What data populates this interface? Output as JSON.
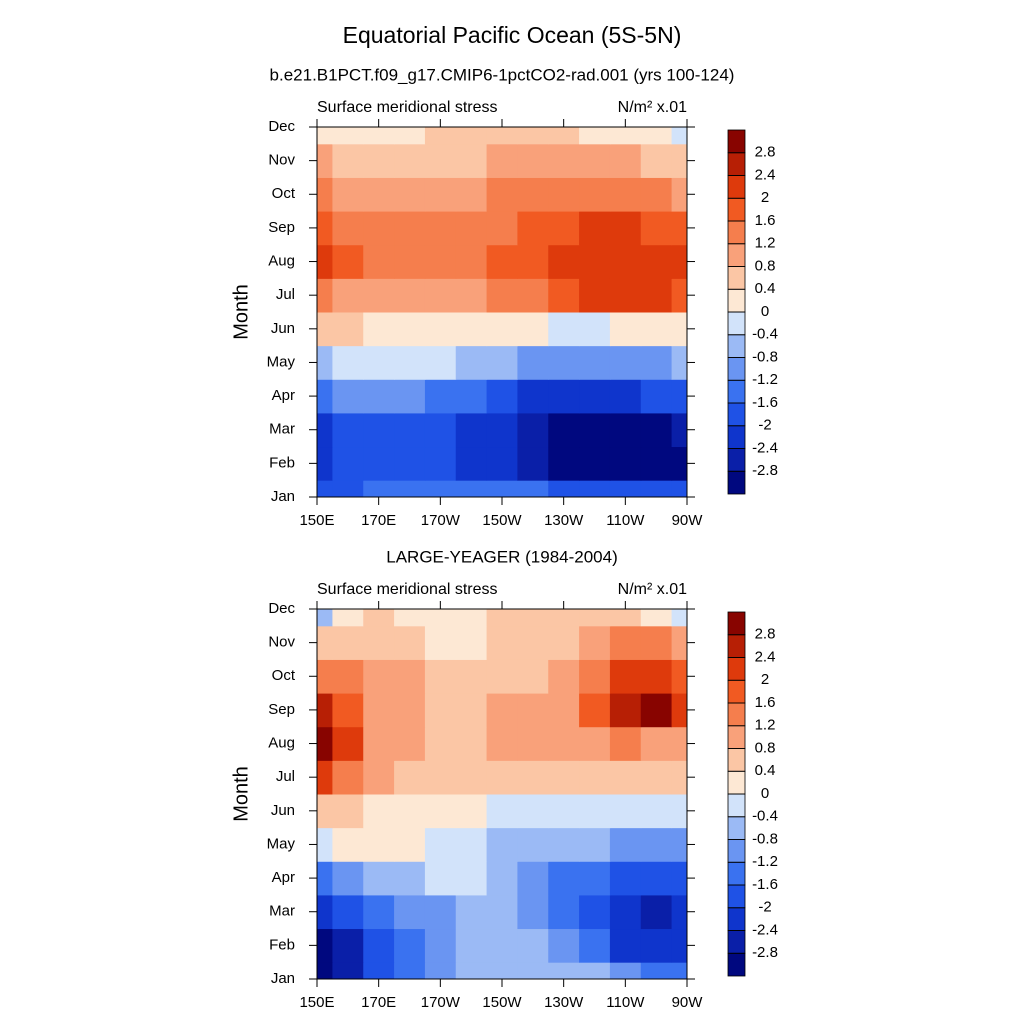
{
  "title": "Equatorial Pacific Ocean (5S-5N)",
  "chart_data": [
    {
      "type": "contour",
      "title": "b.e21.B1PCT.f09_g17.CMIP6-1pctCO2-rad.001 (yrs 100-124)",
      "left_label": "Surface meridional stress",
      "right_label": "N/m² x.01",
      "ylabel": "Month",
      "categories": [
        "Jan",
        "Feb",
        "Mar",
        "Apr",
        "May",
        "Jun",
        "Jul",
        "Aug",
        "Sep",
        "Oct",
        "Nov",
        "Dec"
      ],
      "x": [
        150,
        160,
        170,
        180,
        190,
        200,
        210,
        220,
        230,
        240,
        250,
        260,
        270
      ],
      "xlim": [
        150,
        270
      ],
      "xticks": [
        {
          "value": 150,
          "label": "150E"
        },
        {
          "value": 170,
          "label": "170E"
        },
        {
          "value": 190,
          "label": "170W"
        },
        {
          "value": 210,
          "label": "150W"
        },
        {
          "value": 230,
          "label": "130W"
        },
        {
          "value": 250,
          "label": "110W"
        },
        {
          "value": 270,
          "label": "90W"
        }
      ],
      "levels": [
        -2.8,
        -2.4,
        -2,
        -1.6,
        -1.2,
        -0.8,
        -0.4,
        0,
        0.4,
        0.8,
        1.2,
        1.6,
        2,
        2.4,
        2.8
      ],
      "colors": [
        "#00087f",
        "#0a1fa8",
        "#0f35cc",
        "#1f52e6",
        "#3a72f0",
        "#6a95f2",
        "#9bbaf5",
        "#d2e3fa",
        "#fde8d4",
        "#fbc6a5",
        "#f9a17a",
        "#f57e4d",
        "#f15a22",
        "#de3a0c",
        "#b71f05",
        "#880400"
      ],
      "z": [
        [
          -1.8,
          -1.7,
          -1.6,
          -1.5,
          -1.4,
          -1.3,
          -1.3,
          -1.5,
          -1.7,
          -1.8,
          -1.9,
          -2,
          -2
        ],
        [
          -2.2,
          -2,
          -1.9,
          -1.9,
          -2,
          -2.1,
          -2.3,
          -2.6,
          -2.9,
          -3,
          -3,
          -3,
          -2.9
        ],
        [
          -2.1,
          -1.9,
          -1.8,
          -1.8,
          -1.9,
          -2.1,
          -2.4,
          -2.7,
          -2.9,
          -3,
          -3,
          -2.9,
          -2.6
        ],
        [
          -1.3,
          -1.2,
          -1.1,
          -1.2,
          -1.4,
          -1.6,
          -1.9,
          -2.1,
          -2.2,
          -2.2,
          -2.1,
          -1.9,
          -1.7
        ],
        [
          -0.5,
          -0.4,
          -0.3,
          -0.3,
          -0.4,
          -0.6,
          -0.8,
          -1,
          -1.1,
          -1.1,
          -1,
          -0.9,
          -0.8
        ],
        [
          0.5,
          0.4,
          0.3,
          0.2,
          0.2,
          0.2,
          0.1,
          0,
          -0.1,
          -0.1,
          0,
          0.1,
          0.3
        ],
        [
          1.4,
          1.1,
          0.9,
          0.8,
          0.9,
          1,
          1.2,
          1.5,
          1.8,
          2,
          2.1,
          2.1,
          1.9
        ],
        [
          2.1,
          1.6,
          1.3,
          1.2,
          1.2,
          1.3,
          1.6,
          1.9,
          2.1,
          2.2,
          2.2,
          2.2,
          2
        ],
        [
          1.8,
          1.4,
          1.3,
          1.3,
          1.3,
          1.3,
          1.5,
          1.7,
          1.9,
          2,
          2,
          1.9,
          1.7
        ],
        [
          1.2,
          1.1,
          1.1,
          1.1,
          1.1,
          1.1,
          1.2,
          1.3,
          1.3,
          1.3,
          1.3,
          1.2,
          1
        ],
        [
          0.8,
          0.7,
          0.7,
          0.7,
          0.7,
          0.7,
          0.8,
          0.9,
          0.9,
          0.9,
          0.8,
          0.7,
          0.6
        ],
        [
          0.3,
          0.3,
          0.3,
          0.3,
          0.4,
          0.4,
          0.4,
          0.4,
          0.4,
          0.3,
          0.2,
          0.1,
          -0.1
        ]
      ]
    },
    {
      "type": "contour",
      "title": "LARGE-YEAGER (1984-2004)",
      "left_label": "Surface meridional stress",
      "right_label": "N/m² x.01",
      "ylabel": "Month",
      "categories": [
        "Jan",
        "Feb",
        "Mar",
        "Apr",
        "May",
        "Jun",
        "Jul",
        "Aug",
        "Sep",
        "Oct",
        "Nov",
        "Dec"
      ],
      "x": [
        150,
        160,
        170,
        180,
        190,
        200,
        210,
        220,
        230,
        240,
        250,
        260,
        270
      ],
      "xlim": [
        150,
        270
      ],
      "xticks": [
        {
          "value": 150,
          "label": "150E"
        },
        {
          "value": 170,
          "label": "170E"
        },
        {
          "value": 190,
          "label": "170W"
        },
        {
          "value": 210,
          "label": "150W"
        },
        {
          "value": 230,
          "label": "130W"
        },
        {
          "value": 250,
          "label": "110W"
        },
        {
          "value": 270,
          "label": "90W"
        }
      ],
      "levels": [
        -2.8,
        -2.4,
        -2,
        -1.6,
        -1.2,
        -0.8,
        -0.4,
        0,
        0.4,
        0.8,
        1.2,
        1.6,
        2,
        2.4,
        2.8
      ],
      "colors": [
        "#00087f",
        "#0a1fa8",
        "#0f35cc",
        "#1f52e6",
        "#3a72f0",
        "#6a95f2",
        "#9bbaf5",
        "#d2e3fa",
        "#fde8d4",
        "#fbc6a5",
        "#f9a17a",
        "#f57e4d",
        "#f15a22",
        "#de3a0c",
        "#b71f05",
        "#880400"
      ],
      "z": [
        [
          -3,
          -2.7,
          -1.9,
          -1.4,
          -1.1,
          -0.7,
          -0.5,
          -0.5,
          -0.6,
          -0.8,
          -1.2,
          -1.6,
          -1.5
        ],
        [
          -3,
          -2.6,
          -2,
          -1.4,
          -1,
          -0.7,
          -0.5,
          -0.7,
          -1,
          -1.5,
          -2.1,
          -2.4,
          -2.2
        ],
        [
          -2.4,
          -2,
          -1.6,
          -1.2,
          -0.9,
          -0.6,
          -0.5,
          -0.9,
          -1.4,
          -1.8,
          -2.3,
          -2.6,
          -2.3
        ],
        [
          -1.4,
          -1.1,
          -0.8,
          -0.6,
          -0.4,
          -0.4,
          -0.6,
          -1.2,
          -1.4,
          -1.6,
          -1.8,
          -1.9,
          -1.7
        ],
        [
          -0.4,
          0.1,
          0.3,
          0.2,
          -0.1,
          -0.3,
          -0.6,
          -0.8,
          -0.8,
          -0.8,
          -0.9,
          -1,
          -1
        ],
        [
          0.6,
          0.4,
          0.3,
          0.2,
          0.1,
          0,
          -0.1,
          -0.2,
          -0.3,
          -0.3,
          -0.3,
          -0.3,
          -0.3
        ],
        [
          2.2,
          1.2,
          0.8,
          0.6,
          0.5,
          0.5,
          0.5,
          0.5,
          0.5,
          0.6,
          0.7,
          0.6,
          0.4
        ],
        [
          3,
          2,
          1.1,
          0.9,
          0.6,
          0.7,
          0.8,
          0.9,
          1,
          1.1,
          1.2,
          1,
          0.8
        ],
        [
          2.6,
          1.9,
          1,
          0.9,
          0.5,
          0.7,
          0.8,
          0.8,
          1,
          1.6,
          2.4,
          2.8,
          2.2
        ],
        [
          1.4,
          1.2,
          0.9,
          0.8,
          0.5,
          0.5,
          0.5,
          0.6,
          0.8,
          1.3,
          2,
          2.3,
          1.8
        ],
        [
          0.6,
          0.6,
          0.6,
          0.4,
          0.3,
          0.3,
          0.4,
          0.5,
          0.6,
          0.8,
          1.2,
          1.3,
          0.9
        ],
        [
          -0.6,
          0.2,
          0.4,
          0.3,
          0.2,
          0.3,
          0.4,
          0.6,
          0.6,
          0.6,
          0.5,
          0.3,
          -0.2
        ]
      ]
    }
  ]
}
